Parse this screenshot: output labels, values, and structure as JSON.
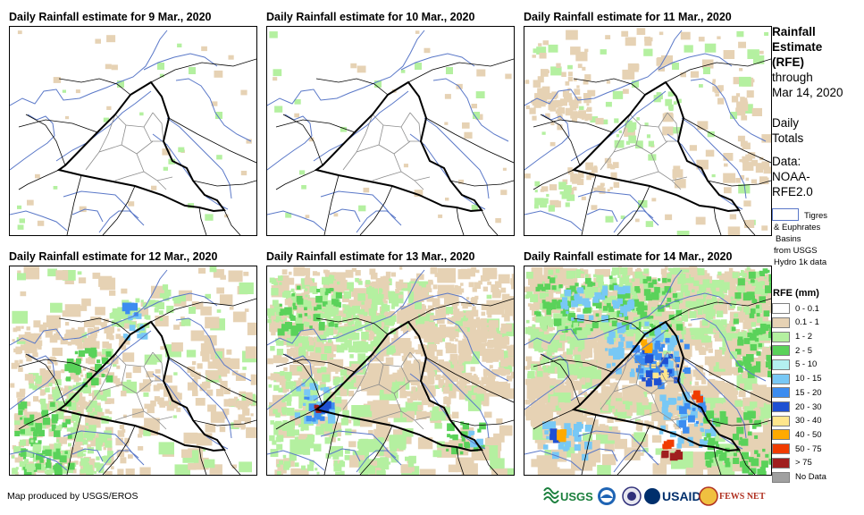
{
  "panels": [
    {
      "title": "Daily Rainfall estimate for 9 Mar., 2020",
      "intensity": 0
    },
    {
      "title": "Daily Rainfall estimate for 10 Mar., 2020",
      "intensity": 0
    },
    {
      "title": "Daily Rainfall estimate for 11 Mar., 2020",
      "intensity": 1
    },
    {
      "title": "Daily Rainfall estimate for 12 Mar., 2020",
      "intensity": 2
    },
    {
      "title": "Daily Rainfall estimate for 13 Mar., 2020",
      "intensity": 3
    },
    {
      "title": "Daily Rainfall estimate for 14 Mar., 2020",
      "intensity": 4
    }
  ],
  "legend": {
    "title_lines": [
      "Rainfall",
      "Estimate",
      "(RFE)"
    ],
    "through": "through",
    "date": "Mar 14, 2020",
    "daily": "Daily",
    "totals": "Totals",
    "data_label": "Data:",
    "source1": "NOAA-",
    "source2": "RFE2.0",
    "basin_lines": [
      "Tigres",
      "& Euphrates",
      "Basins",
      "from USGS",
      "Hydro 1k data"
    ],
    "basin_color": "#5a78c8",
    "rfe_title": "RFE (mm)",
    "classes": [
      {
        "label": "0 - 0.1",
        "color": "#ffffff"
      },
      {
        "label": "0.1 - 1",
        "color": "#e6d2b4"
      },
      {
        "label": "1 - 2",
        "color": "#b4f0a0"
      },
      {
        "label": "2 - 5",
        "color": "#5ad25a"
      },
      {
        "label": "5 - 10",
        "color": "#b4f0f0"
      },
      {
        "label": "10 - 15",
        "color": "#78c8f5"
      },
      {
        "label": "15 - 20",
        "color": "#3c8cf0"
      },
      {
        "label": "20 - 30",
        "color": "#1e50d2"
      },
      {
        "label": "30 - 40",
        "color": "#ffe68c"
      },
      {
        "label": "40 - 50",
        "color": "#ffaa00"
      },
      {
        "label": "50 - 75",
        "color": "#f03c00"
      },
      {
        "label": "> 75",
        "color": "#a01e1e"
      },
      {
        "label": "No Data",
        "color": "#a0a0a0"
      }
    ]
  },
  "footer": "Map produced by USGS/EROS",
  "logos": {
    "usgs": "USGS",
    "usaid": "USAID",
    "fews": "FEWS NET"
  }
}
